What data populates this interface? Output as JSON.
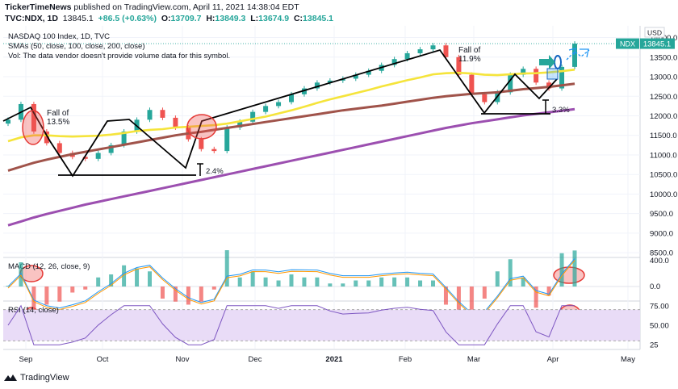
{
  "header": {
    "publisher": "TickerTimeNews",
    "published_text": " published on TradingView.com, April 11, 2021 14:38:04 EDT",
    "symbol_line": "TVC:NDX, 1D",
    "last": "13845.1",
    "change": "+86.5 (+0.63%)",
    "o_label": "O:",
    "o": "13709.7",
    "h_label": "H:",
    "h": "13849.3",
    "l_label": "L:",
    "l": "13674.9",
    "c_label": "C:",
    "c": "13845.1"
  },
  "legend": {
    "title": "NASDAQ 100 Index, 1D, TVC",
    "smas": "SMAs (50, close, 100, close, 200, close)",
    "vol": "Vol: The data vendor doesn't provide volume data for this symbol."
  },
  "price_tag": {
    "symbol": "NDX",
    "value": "13845.1"
  },
  "currency": "USD",
  "branding": "TradingView",
  "colors": {
    "up": "#26a69a",
    "down": "#ef5350",
    "sma50": "#f5e43b",
    "sma100": "#a0534a",
    "sma200": "#9c4fb0",
    "macd": "#2196f3",
    "signal": "#ff9800",
    "rsi": "#7e57c2",
    "rsi_band": "#e9dcf7",
    "tag": "#26a69a"
  },
  "annotations": {
    "fall1": "Fall of\n13.5%",
    "fall2": "Fall of\n11.9%",
    "pct1": "2.4%",
    "pct2": "3.3%"
  },
  "macd_label": "MACD (12, 26, close, 9)",
  "rsi_label": "RSI (14, close)",
  "chart_data": {
    "type": "candlestick",
    "price_axis": {
      "ticks": [
        14000,
        13500,
        13000,
        12500,
        12000,
        11500,
        11000,
        10500,
        10000,
        9500,
        9000,
        8500
      ],
      "range": [
        8400,
        14300
      ]
    },
    "macd_axis": {
      "ticks": [
        400.0,
        0.0
      ],
      "labels": [
        "400.0",
        "0.0"
      ]
    },
    "rsi_axis": {
      "ticks": [
        75.0,
        50.0,
        25
      ],
      "labels": [
        "75.00",
        "50.00",
        "25"
      ]
    },
    "x_labels": [
      "Sep",
      "Oct",
      "Nov",
      "Dec",
      "2021",
      "Feb",
      "Mar",
      "Apr",
      "May"
    ],
    "closes": [
      11900,
      12300,
      11600,
      11300,
      11050,
      10950,
      10900,
      11050,
      11250,
      11600,
      11900,
      12150,
      11950,
      11700,
      11400,
      11150,
      11100,
      11700,
      11850,
      12100,
      12250,
      12350,
      12550,
      12700,
      12850,
      12900,
      12950,
      13050,
      13150,
      13300,
      13450,
      13600,
      13700,
      13800,
      13500,
      13050,
      12550,
      12350,
      12600,
      13050,
      13200,
      12850,
      12700,
      13250,
      13845.1
    ],
    "series": [
      {
        "name": "SMA 50",
        "values": [
          11350,
          11450,
          11500,
          11500,
          11480,
          11470,
          11480,
          11490,
          11520,
          11560,
          11610,
          11640,
          11660,
          11700,
          11720,
          11740,
          11760,
          11800,
          11860,
          11920,
          11980,
          12060,
          12140,
          12230,
          12330,
          12420,
          12500,
          12580,
          12660,
          12750,
          12830,
          12910,
          12980,
          13060,
          13090,
          13100,
          13080,
          13050,
          13040,
          13060,
          13080,
          13090,
          13110,
          13140,
          13180
        ]
      },
      {
        "name": "SMA 100",
        "values": [
          10600,
          10700,
          10800,
          10880,
          10950,
          11020,
          11080,
          11140,
          11200,
          11260,
          11320,
          11380,
          11440,
          11500,
          11550,
          11590,
          11640,
          11690,
          11740,
          11790,
          11840,
          11890,
          11940,
          11990,
          12040,
          12090,
          12140,
          12180,
          12220,
          12260,
          12310,
          12360,
          12410,
          12460,
          12500,
          12530,
          12560,
          12580,
          12600,
          12640,
          12680,
          12710,
          12740,
          12780,
          12820
        ]
      },
      {
        "name": "SMA 200",
        "values": [
          9200,
          9300,
          9400,
          9490,
          9570,
          9650,
          9730,
          9800,
          9870,
          9940,
          10010,
          10080,
          10150,
          10220,
          10290,
          10360,
          10430,
          10500,
          10570,
          10640,
          10710,
          10780,
          10850,
          10920,
          10990,
          11060,
          11130,
          11200,
          11270,
          11340,
          11410,
          11480,
          11550,
          11620,
          11690,
          11750,
          11810,
          11860,
          11910,
          11960,
          12010,
          12050,
          12090,
          12130,
          12170
        ]
      }
    ]
  }
}
